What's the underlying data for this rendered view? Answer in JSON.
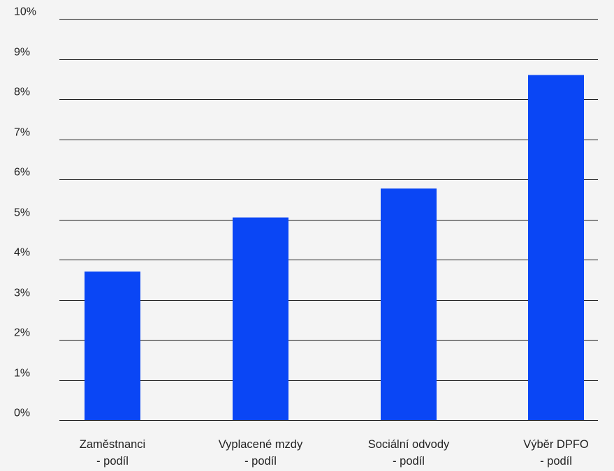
{
  "chart_data": {
    "type": "bar",
    "categories": [
      [
        "Zaměstnanci",
        "- podíl"
      ],
      [
        "Vyplacené mzdy",
        "- podíl"
      ],
      [
        "Sociální odvody",
        "- podíl"
      ],
      [
        "Výběr DPFO",
        "- podíl"
      ]
    ],
    "values": [
      3.7,
      5.05,
      5.77,
      8.6
    ],
    "ylim": [
      0,
      10
    ],
    "yticks": [
      0,
      1,
      2,
      3,
      4,
      5,
      6,
      7,
      8,
      9,
      10
    ],
    "ytick_suffix": "%",
    "grid": true,
    "legend": "none",
    "title": "",
    "xlabel": "",
    "ylabel": "",
    "colors": {
      "bar": "#0a46f5",
      "grid": "#1a1a1a",
      "text": "#222222",
      "background": "#f4f4f4"
    }
  }
}
